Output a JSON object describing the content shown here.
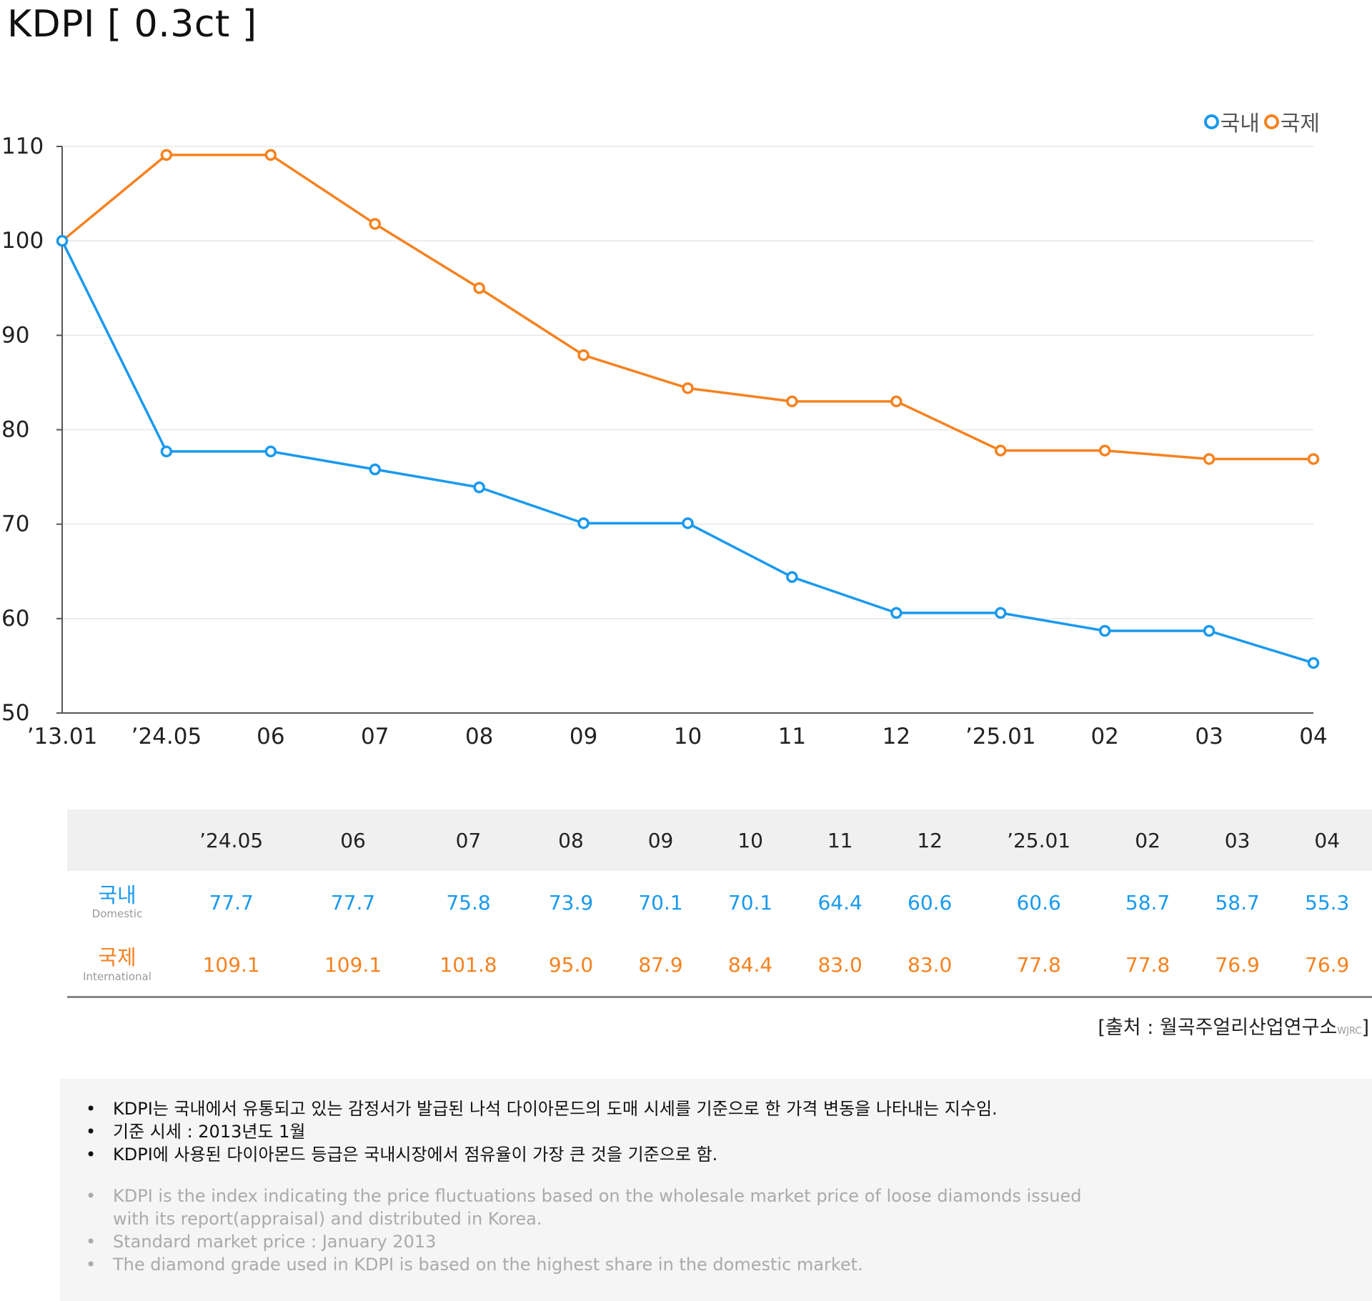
{
  "title": "KDPI [ 0.3ct ]",
  "legend": {
    "domestic": "국내",
    "international": "국제"
  },
  "colors": {
    "domestic": "#1a99ee",
    "international": "#f58220",
    "grid": "#e6e6e6",
    "axis": "#555555"
  },
  "chart_data": {
    "type": "line",
    "categories": [
      "’13.01",
      "’24.05",
      "06",
      "07",
      "08",
      "09",
      "10",
      "11",
      "12",
      "’25.01",
      "02",
      "03",
      "04"
    ],
    "series": [
      {
        "name": "국내",
        "values": [
          100,
          77.7,
          77.7,
          75.8,
          73.9,
          70.1,
          70.1,
          64.4,
          60.6,
          60.6,
          58.7,
          58.7,
          55.3
        ]
      },
      {
        "name": "국제",
        "values": [
          100,
          109.1,
          109.1,
          101.8,
          95.0,
          87.9,
          84.4,
          83.0,
          83.0,
          77.8,
          77.8,
          76.9,
          76.9
        ]
      }
    ],
    "ylim": [
      50,
      110
    ],
    "yticks": [
      "50",
      "60",
      "70",
      "80",
      "90",
      "100",
      "110"
    ],
    "grid": true,
    "legend_position": "top-right"
  },
  "table": {
    "headers": [
      "’24.05",
      "06",
      "07",
      "08",
      "09",
      "10",
      "11",
      "12",
      "’25.01",
      "02",
      "03",
      "04"
    ],
    "domestic_label": "국내",
    "domestic_label_en": "Domestic",
    "domestic": [
      "77.7",
      "77.7",
      "75.8",
      "73.9",
      "70.1",
      "70.1",
      "64.4",
      "60.6",
      "60.6",
      "58.7",
      "58.7",
      "55.3"
    ],
    "international_label": "국제",
    "international_label_en": "International",
    "international": [
      "109.1",
      "109.1",
      "101.8",
      "95.0",
      "87.9",
      "84.4",
      "83.0",
      "83.0",
      "77.8",
      "77.8",
      "76.9",
      "76.9"
    ]
  },
  "source": {
    "text": "[출처 : 월곡주얼리산업연구소",
    "abbr": "WJRC",
    "close": "]"
  },
  "notes_ko": [
    "KDPI는 국내에서 유통되고 있는 감정서가 발급된 나석 다이아몬드의 도매 시세를 기준으로 한 가격 변동을 나타내는 지수임.",
    "기준 시세 : 2013년도 1월",
    "KDPI에 사용된 다이아몬드 등급은 국내시장에서 점유율이 가장 큰 것을 기준으로 함."
  ],
  "notes_en": [
    "KDPI is the index indicating the price fluctuations based on the wholesale market price of loose diamonds issued with its report(appraisal) and distributed in Korea.",
    "Standard market price : January 2013",
    "The diamond grade used in KDPI is based on the highest share in the domestic market."
  ]
}
